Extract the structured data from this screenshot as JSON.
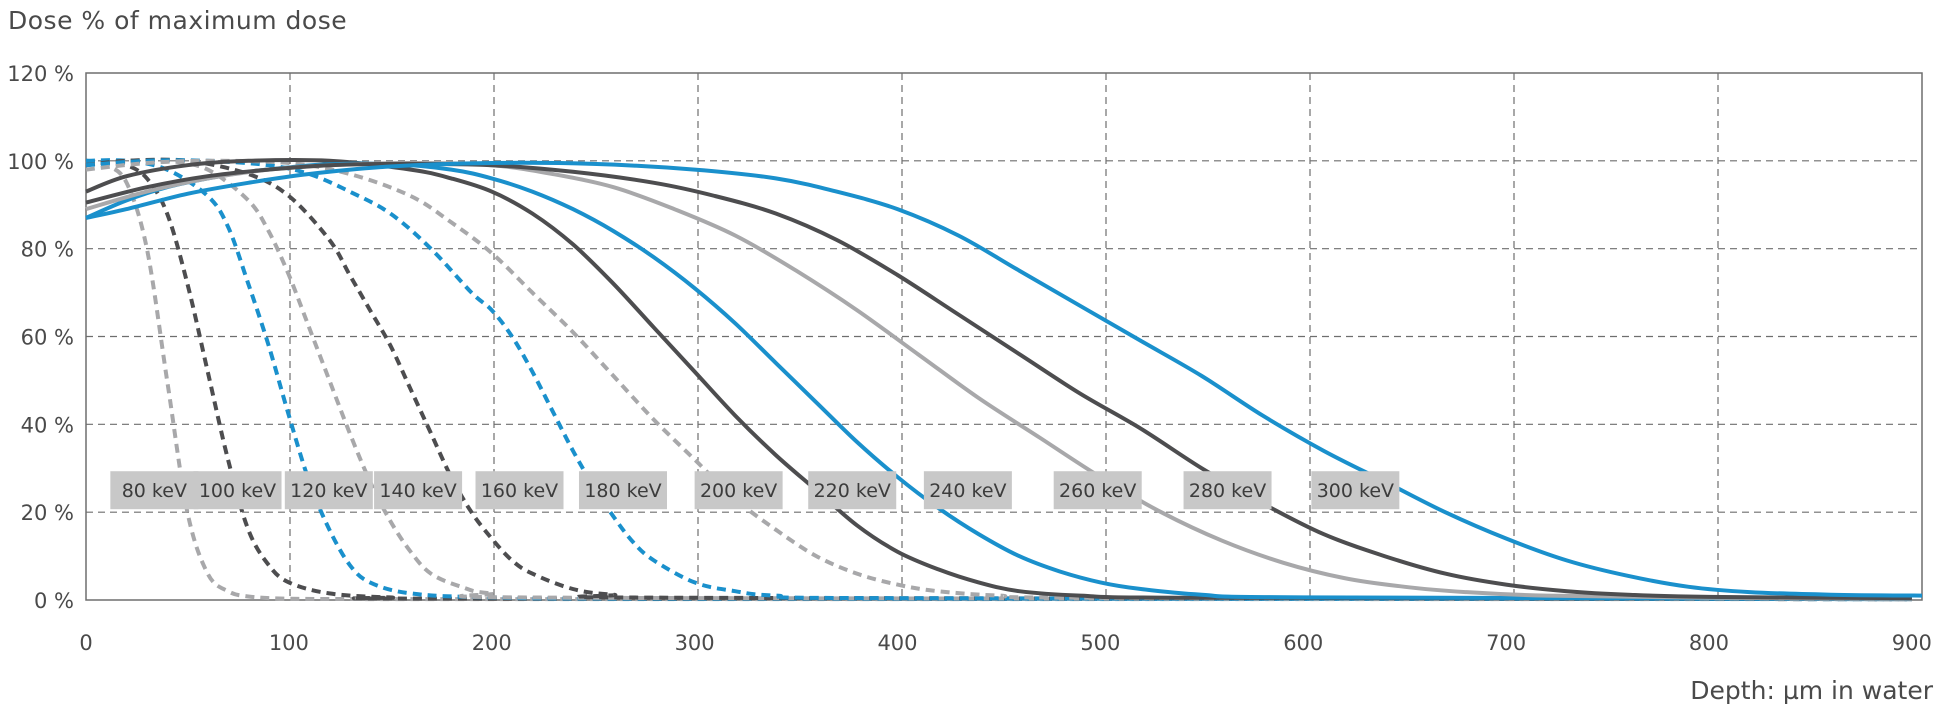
{
  "chart_data": {
    "type": "line",
    "ylabel": "Dose % of maximum dose",
    "xlabel": "Depth: µm in water",
    "xlim": [
      0,
      905
    ],
    "ylim": [
      0,
      120
    ],
    "xticks": [
      0,
      100,
      200,
      300,
      400,
      500,
      600,
      700,
      800,
      900
    ],
    "yticks": [
      {
        "value": 0,
        "label": "0 %"
      },
      {
        "value": 20,
        "label": "20 %"
      },
      {
        "value": 40,
        "label": "40 %"
      },
      {
        "value": 60,
        "label": "60 %"
      },
      {
        "value": 80,
        "label": "80 %"
      },
      {
        "value": 100,
        "label": "100 %"
      },
      {
        "value": 120,
        "label": "120 %"
      }
    ],
    "grid": true,
    "colors": {
      "blue": "#1a90cc",
      "dark": "#4d4d4f",
      "light": "#a8a8aa",
      "label_bg": "#c8c8c8",
      "axis": "#4a4a4a"
    },
    "series": [
      {
        "name": "80 keV",
        "color": "light",
        "dashed": true,
        "points": [
          [
            0,
            100
          ],
          [
            10,
            99
          ],
          [
            20,
            95
          ],
          [
            30,
            80
          ],
          [
            40,
            50
          ],
          [
            50,
            20
          ],
          [
            60,
            6
          ],
          [
            70,
            2
          ],
          [
            80,
            0.8
          ],
          [
            100,
            0.3
          ],
          [
            150,
            0.2
          ],
          [
            300,
            0.2
          ],
          [
            900,
            0.2
          ]
        ]
      },
      {
        "name": "100 keV",
        "color": "dark",
        "dashed": true,
        "points": [
          [
            0,
            100
          ],
          [
            10,
            99.5
          ],
          [
            20,
            99
          ],
          [
            30,
            96
          ],
          [
            40,
            88
          ],
          [
            50,
            72
          ],
          [
            60,
            52
          ],
          [
            70,
            32
          ],
          [
            80,
            16
          ],
          [
            90,
            8
          ],
          [
            100,
            4
          ],
          [
            120,
            1.5
          ],
          [
            150,
            0.6
          ],
          [
            200,
            0.3
          ],
          [
            900,
            0.2
          ]
        ]
      },
      {
        "name": "120 keV",
        "color": "blue",
        "dashed": true,
        "points": [
          [
            0,
            100
          ],
          [
            20,
            100
          ],
          [
            40,
            98
          ],
          [
            60,
            92
          ],
          [
            70,
            85
          ],
          [
            80,
            72
          ],
          [
            90,
            58
          ],
          [
            100,
            42
          ],
          [
            110,
            27
          ],
          [
            120,
            16
          ],
          [
            130,
            8
          ],
          [
            140,
            4
          ],
          [
            160,
            1.5
          ],
          [
            200,
            0.6
          ],
          [
            300,
            0.3
          ],
          [
            900,
            0.2
          ]
        ]
      },
      {
        "name": "140 keV",
        "color": "light",
        "dashed": true,
        "points": [
          [
            0,
            99
          ],
          [
            20,
            100
          ],
          [
            40,
            100
          ],
          [
            60,
            98
          ],
          [
            80,
            91
          ],
          [
            90,
            84
          ],
          [
            100,
            74
          ],
          [
            110,
            62
          ],
          [
            120,
            50
          ],
          [
            130,
            38
          ],
          [
            140,
            27
          ],
          [
            150,
            18
          ],
          [
            160,
            11
          ],
          [
            170,
            6
          ],
          [
            185,
            3
          ],
          [
            200,
            1.5
          ],
          [
            250,
            0.5
          ],
          [
            900,
            0.2
          ]
        ]
      },
      {
        "name": "160 keV",
        "color": "dark",
        "dashed": true,
        "points": [
          [
            0,
            99
          ],
          [
            20,
            100
          ],
          [
            50,
            100
          ],
          [
            80,
            97
          ],
          [
            100,
            92
          ],
          [
            120,
            82
          ],
          [
            130,
            74
          ],
          [
            140,
            66
          ],
          [
            150,
            58
          ],
          [
            160,
            48
          ],
          [
            170,
            38
          ],
          [
            180,
            28
          ],
          [
            190,
            20
          ],
          [
            200,
            14
          ],
          [
            210,
            9
          ],
          [
            220,
            6
          ],
          [
            240,
            2.5
          ],
          [
            260,
            1.2
          ],
          [
            300,
            0.5
          ],
          [
            900,
            0.2
          ]
        ]
      },
      {
        "name": "180 keV",
        "color": "blue",
        "dashed": true,
        "points": [
          [
            0,
            99
          ],
          [
            30,
            100
          ],
          [
            60,
            100
          ],
          [
            90,
            99
          ],
          [
            110,
            97
          ],
          [
            130,
            93
          ],
          [
            150,
            88
          ],
          [
            170,
            80
          ],
          [
            190,
            70
          ],
          [
            200,
            66
          ],
          [
            210,
            60
          ],
          [
            220,
            52
          ],
          [
            230,
            43
          ],
          [
            240,
            34
          ],
          [
            250,
            26
          ],
          [
            260,
            19
          ],
          [
            270,
            13
          ],
          [
            280,
            9
          ],
          [
            300,
            4
          ],
          [
            320,
            2
          ],
          [
            340,
            1
          ],
          [
            400,
            0.4
          ],
          [
            900,
            0.2
          ]
        ]
      },
      {
        "name": "200 keV",
        "color": "light",
        "dashed": true,
        "points": [
          [
            0,
            98
          ],
          [
            30,
            99.5
          ],
          [
            60,
            100
          ],
          [
            100,
            99.5
          ],
          [
            130,
            97
          ],
          [
            160,
            92
          ],
          [
            180,
            86
          ],
          [
            200,
            79
          ],
          [
            220,
            70
          ],
          [
            240,
            61
          ],
          [
            260,
            51
          ],
          [
            280,
            41
          ],
          [
            300,
            32
          ],
          [
            320,
            23
          ],
          [
            340,
            16
          ],
          [
            360,
            10
          ],
          [
            380,
            6
          ],
          [
            400,
            3.5
          ],
          [
            420,
            2
          ],
          [
            450,
            1
          ],
          [
            500,
            0.5
          ],
          [
            900,
            0.2
          ]
        ]
      },
      {
        "name": "220 keV",
        "color": "dark",
        "dashed": false,
        "points": [
          [
            0,
            93
          ],
          [
            20,
            96.5
          ],
          [
            50,
            99
          ],
          [
            80,
            100
          ],
          [
            120,
            100
          ],
          [
            160,
            98
          ],
          [
            180,
            96
          ],
          [
            200,
            93
          ],
          [
            220,
            88
          ],
          [
            240,
            81
          ],
          [
            260,
            72
          ],
          [
            280,
            62
          ],
          [
            300,
            52
          ],
          [
            320,
            42
          ],
          [
            340,
            33
          ],
          [
            360,
            25
          ],
          [
            380,
            17
          ],
          [
            400,
            11
          ],
          [
            420,
            7
          ],
          [
            440,
            4
          ],
          [
            460,
            2
          ],
          [
            490,
            1
          ],
          [
            550,
            0.5
          ],
          [
            900,
            0.3
          ]
        ]
      },
      {
        "name": "240 keV",
        "color": "blue",
        "dashed": false,
        "points": [
          [
            0,
            87
          ],
          [
            20,
            91
          ],
          [
            40,
            94
          ],
          [
            60,
            96
          ],
          [
            80,
            97.5
          ],
          [
            100,
            98.5
          ],
          [
            120,
            99.2
          ],
          [
            150,
            99.3
          ],
          [
            180,
            98
          ],
          [
            200,
            96
          ],
          [
            220,
            93
          ],
          [
            240,
            89
          ],
          [
            260,
            84
          ],
          [
            280,
            78
          ],
          [
            300,
            71
          ],
          [
            320,
            63
          ],
          [
            340,
            54
          ],
          [
            360,
            45
          ],
          [
            380,
            36
          ],
          [
            400,
            28
          ],
          [
            420,
            21
          ],
          [
            440,
            15
          ],
          [
            460,
            10
          ],
          [
            480,
            6.5
          ],
          [
            500,
            4
          ],
          [
            520,
            2.5
          ],
          [
            550,
            1.2
          ],
          [
            600,
            0.6
          ],
          [
            900,
            0.3
          ]
        ]
      },
      {
        "name": "260 keV",
        "color": "light",
        "dashed": false,
        "points": [
          [
            0,
            89
          ],
          [
            30,
            93
          ],
          [
            60,
            96
          ],
          [
            90,
            98
          ],
          [
            120,
            99
          ],
          [
            160,
            99.5
          ],
          [
            200,
            99
          ],
          [
            230,
            97
          ],
          [
            260,
            94
          ],
          [
            290,
            89
          ],
          [
            320,
            83
          ],
          [
            350,
            75
          ],
          [
            380,
            66
          ],
          [
            410,
            56
          ],
          [
            440,
            46
          ],
          [
            470,
            37
          ],
          [
            500,
            28
          ],
          [
            530,
            20
          ],
          [
            560,
            13.5
          ],
          [
            590,
            8.5
          ],
          [
            620,
            5
          ],
          [
            650,
            3
          ],
          [
            680,
            1.8
          ],
          [
            720,
            1
          ],
          [
            800,
            0.5
          ],
          [
            900,
            0.3
          ]
        ]
      },
      {
        "name": "280 keV",
        "color": "dark",
        "dashed": false,
        "points": [
          [
            0,
            90.5
          ],
          [
            30,
            94
          ],
          [
            60,
            96.5
          ],
          [
            90,
            98
          ],
          [
            120,
            99
          ],
          [
            160,
            99.3
          ],
          [
            200,
            99
          ],
          [
            240,
            97.5
          ],
          [
            280,
            95
          ],
          [
            310,
            92
          ],
          [
            340,
            88
          ],
          [
            370,
            82
          ],
          [
            400,
            74
          ],
          [
            430,
            65
          ],
          [
            460,
            56
          ],
          [
            490,
            47
          ],
          [
            520,
            39
          ],
          [
            550,
            30
          ],
          [
            580,
            22
          ],
          [
            610,
            15
          ],
          [
            640,
            10
          ],
          [
            670,
            6
          ],
          [
            700,
            3.5
          ],
          [
            730,
            2
          ],
          [
            760,
            1.2
          ],
          [
            800,
            0.7
          ],
          [
            900,
            0.4
          ]
        ]
      },
      {
        "name": "300 keV",
        "color": "blue",
        "dashed": false,
        "points": [
          [
            0,
            87
          ],
          [
            20,
            89
          ],
          [
            50,
            92.5
          ],
          [
            80,
            95
          ],
          [
            110,
            97
          ],
          [
            150,
            98.7
          ],
          [
            200,
            99.5
          ],
          [
            250,
            99.3
          ],
          [
            300,
            98
          ],
          [
            340,
            96
          ],
          [
            370,
            93
          ],
          [
            400,
            89
          ],
          [
            430,
            83
          ],
          [
            460,
            75
          ],
          [
            490,
            67
          ],
          [
            520,
            59
          ],
          [
            550,
            51
          ],
          [
            580,
            42
          ],
          [
            610,
            34
          ],
          [
            640,
            27
          ],
          [
            670,
            20
          ],
          [
            700,
            14
          ],
          [
            730,
            9
          ],
          [
            760,
            5.5
          ],
          [
            790,
            3
          ],
          [
            820,
            1.8
          ],
          [
            860,
            1.2
          ],
          [
            905,
            1
          ]
        ]
      }
    ],
    "label_boxes": [
      {
        "text": "80 keV",
        "x": 12
      },
      {
        "text": "100 keV",
        "x": 53
      },
      {
        "text": "120 keV",
        "x": 98
      },
      {
        "text": "140 keV",
        "x": 142
      },
      {
        "text": "160 keV",
        "x": 192
      },
      {
        "text": "180 keV",
        "x": 243
      },
      {
        "text": "200 keV",
        "x": 300
      },
      {
        "text": "220 keV",
        "x": 356
      },
      {
        "text": "240 keV",
        "x": 413
      },
      {
        "text": "260 keV",
        "x": 477
      },
      {
        "text": "280 keV",
        "x": 541
      },
      {
        "text": "300 keV",
        "x": 604
      }
    ],
    "label_boxes_y": 25
  }
}
